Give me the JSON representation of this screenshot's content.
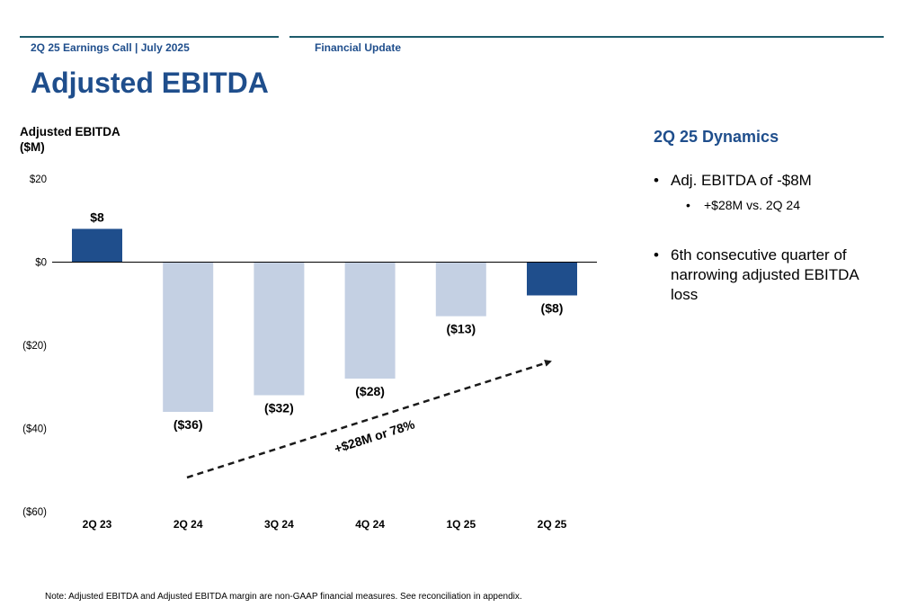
{
  "header": {
    "left_text": "2Q 25 Earnings Call | July 2025",
    "right_text": "Financial Update"
  },
  "page_title": "Adjusted EBITDA",
  "chart_data": {
    "type": "bar",
    "ylabel_line1": "Adjusted EBITDA",
    "ylabel_line2": "($M)",
    "categories": [
      "2Q 23",
      "2Q 24",
      "3Q 24",
      "4Q 24",
      "1Q 25",
      "2Q 25"
    ],
    "values": [
      8,
      -36,
      -32,
      -28,
      -13,
      -8
    ],
    "data_labels": [
      "$8",
      "($36)",
      "($32)",
      "($28)",
      "($13)",
      "($8)"
    ],
    "bar_colors": [
      "#1f4e8c",
      "#c4d0e3",
      "#c4d0e3",
      "#c4d0e3",
      "#c4d0e3",
      "#1f4e8c"
    ],
    "ylim": [
      -60,
      20
    ],
    "yticks": [
      20,
      0,
      -20,
      -40,
      -60
    ],
    "ytick_labels": [
      "$20",
      "$0",
      "($20)",
      "($40)",
      "($60)"
    ],
    "grid": false,
    "annotation": "+$28M or 78%"
  },
  "dynamics": {
    "heading": "2Q 25 Dynamics",
    "bullet1": "Adj. EBITDA of -$8M",
    "sub_bullet1": "+$28M vs. 2Q 24",
    "bullet2_line1": "6th consecutive quarter of",
    "bullet2_line2": "narrowing adjusted EBITDA",
    "bullet2_line3": "loss",
    "bullet_char": "•"
  },
  "footnote": "Note: Adjusted EBITDA and Adjusted EBITDA margin are non-GAAP financial measures. See reconciliation in appendix."
}
